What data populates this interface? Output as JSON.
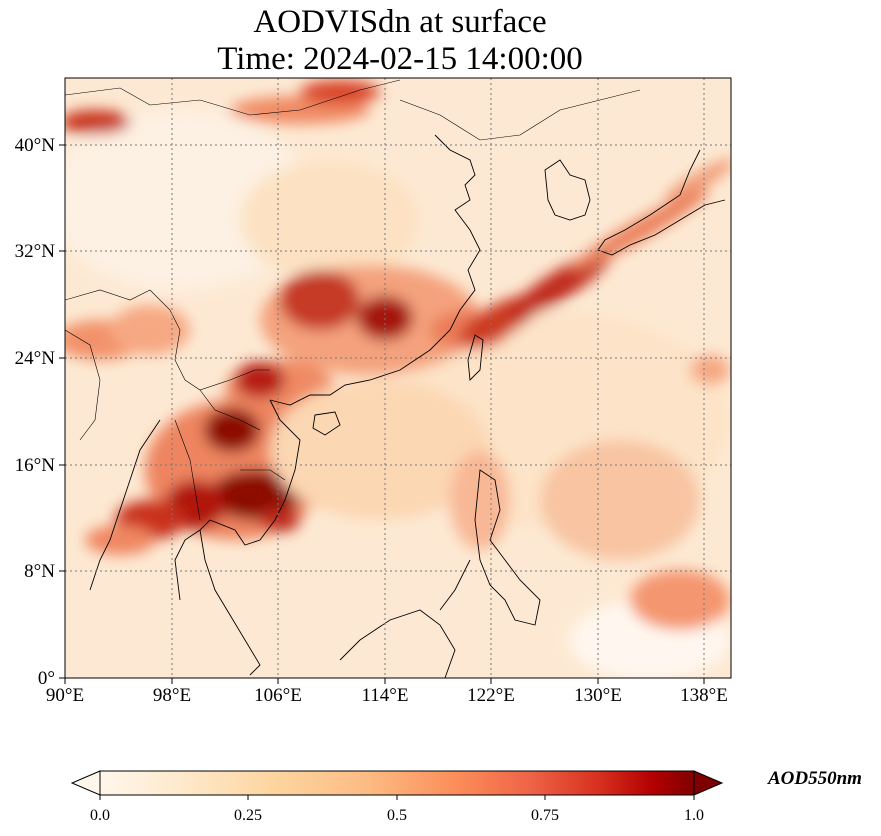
{
  "title": {
    "line1": "AODVISdn at surface",
    "line2": "Time: 2024-02-15 14:00:00"
  },
  "map": {
    "lon_range": [
      90,
      140
    ],
    "lat_range": [
      0,
      45
    ],
    "lon_ticks": [
      "90°E",
      "98°E",
      "106°E",
      "114°E",
      "122°E",
      "130°E",
      "138°E"
    ],
    "lat_ticks": [
      "0°",
      "8°N",
      "16°N",
      "24°N",
      "32°N",
      "40°N"
    ],
    "gridlines": "dotted",
    "colormap": "OrRd"
  },
  "colorbar": {
    "ticks": [
      "0.0",
      "0.25",
      "0.5",
      "0.75",
      "1.0"
    ],
    "label": "AOD550nm",
    "colors": [
      "#fff7ec",
      "#fdd49e",
      "#fc8d59",
      "#d7301f",
      "#7f0000"
    ]
  }
}
